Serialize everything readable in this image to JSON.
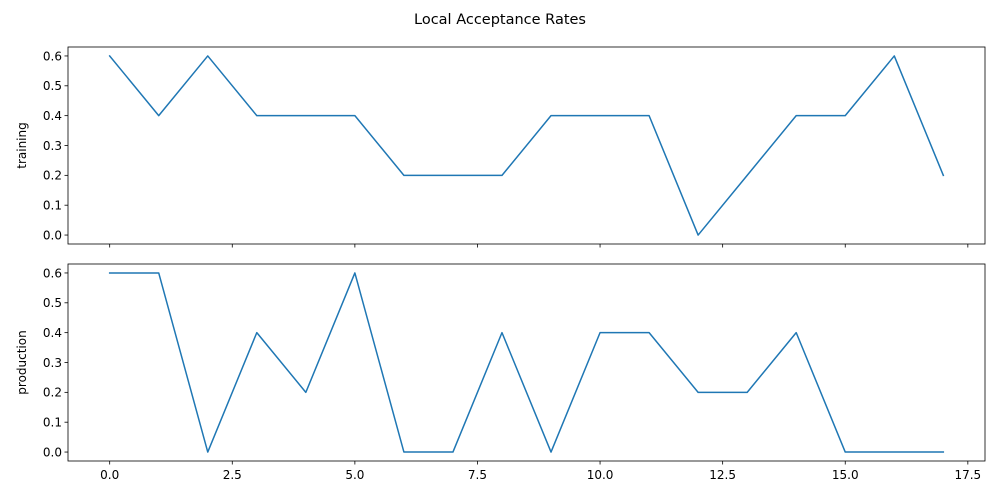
{
  "chart_data": {
    "type": "line",
    "title": "Local Acceptance Rates",
    "line_color": "#1f77b4",
    "x": [
      0,
      1,
      2,
      3,
      4,
      5,
      6,
      7,
      8,
      9,
      10,
      11,
      12,
      13,
      14,
      15,
      16,
      17
    ],
    "xlim": [
      -0.85,
      17.85
    ],
    "x_ticks": [
      0.0,
      2.5,
      5.0,
      7.5,
      10.0,
      12.5,
      15.0,
      17.5
    ],
    "x_tick_labels": [
      "0.0",
      "2.5",
      "5.0",
      "7.5",
      "10.0",
      "12.5",
      "15.0",
      "17.5"
    ],
    "shared_x": true,
    "grid": false,
    "subplots": [
      {
        "name": "training",
        "ylabel": "training",
        "values": [
          0.6,
          0.4,
          0.6,
          0.4,
          0.4,
          0.4,
          0.2,
          0.2,
          0.2,
          0.4,
          0.4,
          0.4,
          0.0,
          0.2,
          0.4,
          0.4,
          0.6,
          0.2
        ],
        "ylim": [
          -0.03,
          0.63
        ],
        "y_ticks": [
          0.0,
          0.1,
          0.2,
          0.3,
          0.4,
          0.5,
          0.6
        ],
        "y_tick_labels": [
          "0.0",
          "0.1",
          "0.2",
          "0.3",
          "0.4",
          "0.5",
          "0.6"
        ],
        "show_x_tick_labels": false
      },
      {
        "name": "production",
        "ylabel": "production",
        "values": [
          0.6,
          0.6,
          0.0,
          0.4,
          0.2,
          0.6,
          0.0,
          0.0,
          0.4,
          0.0,
          0.4,
          0.4,
          0.2,
          0.2,
          0.4,
          0.0,
          0.0,
          0.0
        ],
        "ylim": [
          -0.03,
          0.63
        ],
        "y_ticks": [
          0.0,
          0.1,
          0.2,
          0.3,
          0.4,
          0.5,
          0.6
        ],
        "y_tick_labels": [
          "0.0",
          "0.1",
          "0.2",
          "0.3",
          "0.4",
          "0.5",
          "0.6"
        ],
        "show_x_tick_labels": true
      }
    ]
  }
}
